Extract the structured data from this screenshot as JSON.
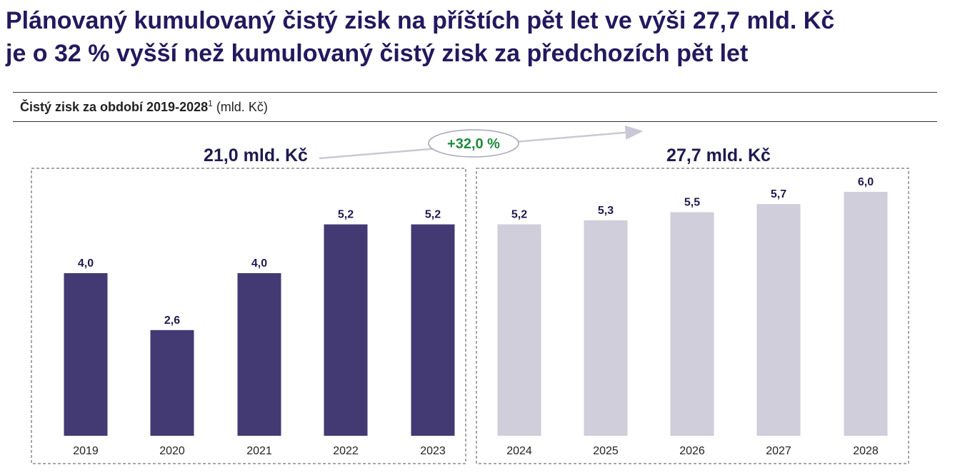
{
  "headline": {
    "line1": "Plánovaný kumulovaný čistý zisk na příštích pět let ve výši 27,7 mld. Kč",
    "line2": "je o 32 % vyšší než kumulovaný čistý zisk za předchozích pět let"
  },
  "subtitle": {
    "bold": "Čistý zisk za období 2019-2028",
    "footnote_mark": "1",
    "unit": "(mld. Kč)"
  },
  "chart_data": {
    "type": "bar",
    "categories": [
      "2019",
      "2020",
      "2021",
      "2022",
      "2023",
      "2024",
      "2025",
      "2026",
      "2027",
      "2028"
    ],
    "values": [
      4.0,
      2.6,
      4.0,
      5.2,
      5.2,
      5.2,
      5.3,
      5.5,
      5.7,
      6.0
    ],
    "value_labels": [
      "4,0",
      "2,6",
      "4,0",
      "5,2",
      "5,2",
      "5,2",
      "5,3",
      "5,5",
      "5,7",
      "6,0"
    ],
    "groups": [
      {
        "label": "21,0 mld. Kč",
        "categories": [
          "2019",
          "2020",
          "2021",
          "2022",
          "2023"
        ],
        "color": "#433a73"
      },
      {
        "label": "27,7 mld. Kč",
        "categories": [
          "2024",
          "2025",
          "2026",
          "2027",
          "2028"
        ],
        "color": "#d0ceda"
      }
    ],
    "growth_label": "+32,0 %",
    "growth_color": "#1e8a3c",
    "label_color": "#1f1a4f",
    "ylim": [
      0,
      6.0
    ]
  }
}
